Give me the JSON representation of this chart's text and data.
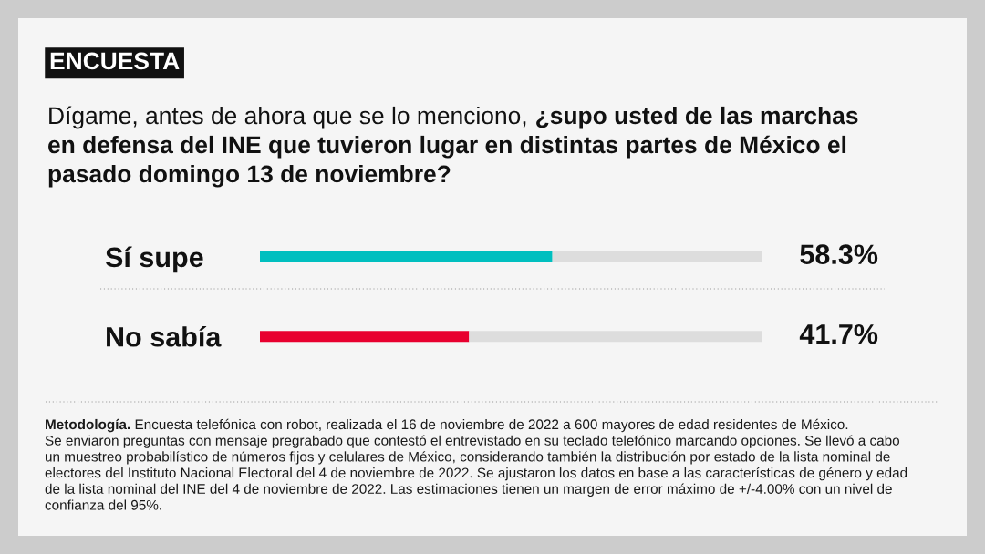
{
  "chart_data": {
    "type": "bar",
    "orientation": "horizontal",
    "stacked": true,
    "title": "ENCUESTA",
    "subtitle": "Dígame, antes de ahora que se lo menciono,",
    "categories": [
      "Sí supe",
      "No sabía"
    ],
    "series": [
      {
        "colors": [
          "#00bfbf",
          "#e8002f"
        ],
        "values": [
          58.3,
          41.7
        ],
        "value_labels": [
          "58.3%",
          "41.7%"
        ]
      },
      {
        "color": "#dddddd",
        "values": [
          41.7,
          58.3
        ]
      }
    ],
    "xlim": [
      0,
      100
    ],
    "tick_labels": "y",
    "annotations": [
      "¿supo usted de las marchas",
      "en defensa del INE que tuvieron lugar en distintas partes de México el pasado domingo 13 de noviembre?",
      "Metodología.",
      "Encuesta telefónica con robot, realizada el 16 de noviembre de 2022 a 600 mayores de edad residentes de México.",
      "Se enviaron preguntas con mensaje pregrabado que contestó el entrevistado en su teclado telefónico marcando opciones. Se llevó a cabo un muestreo probabilístico de números fijos y celulares de México, considerando también la distribución por estado de la lista nominal de electores del Instituto Nacional Electoral del 4 de noviembre de 2022. Se ajustaron los datos en base a las características de género y edad de la lista nominal del INE del 4 de noviembre de 2022. Las estimaciones tienen un margen de error máximo de +/-4.00% con un nivel de confianza del 95%."
    ]
  }
}
